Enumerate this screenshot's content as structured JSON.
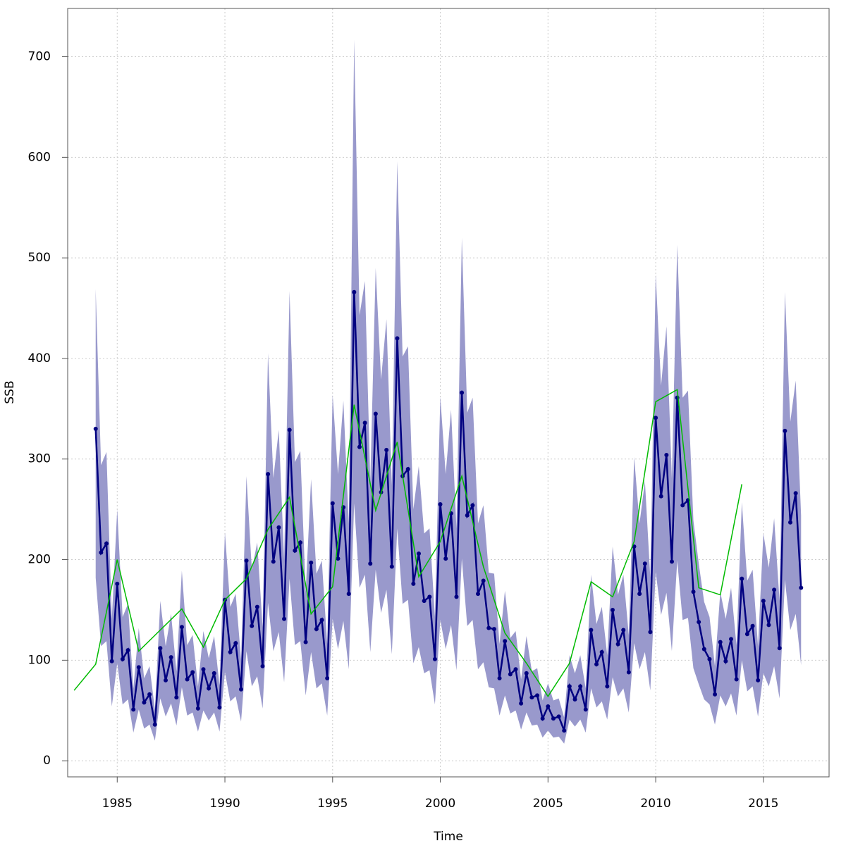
{
  "chart_data": {
    "type": "line",
    "xlabel": "Time",
    "ylabel": "SSB",
    "xlim": [
      1982.7,
      2018.05
    ],
    "ylim": [
      -16,
      748
    ],
    "xticks": [
      1985,
      1990,
      1995,
      2000,
      2005,
      2010,
      2015
    ],
    "yticks": [
      0,
      100,
      200,
      300,
      400,
      500,
      600,
      700
    ],
    "grid": true,
    "series": [
      {
        "color": "#000080",
        "band_color": "#9999cc",
        "markers": true,
        "x": [
          1984,
          1984.25,
          1984.5,
          1984.75,
          1985,
          1985.25,
          1985.5,
          1985.75,
          1986,
          1986.25,
          1986.5,
          1986.75,
          1987,
          1987.25,
          1987.5,
          1987.75,
          1988,
          1988.25,
          1988.5,
          1988.75,
          1989,
          1989.25,
          1989.5,
          1989.75,
          1990,
          1990.25,
          1990.5,
          1990.75,
          1991,
          1991.25,
          1991.5,
          1991.75,
          1992,
          1992.25,
          1992.5,
          1992.75,
          1993,
          1993.25,
          1993.5,
          1993.75,
          1994,
          1994.25,
          1994.5,
          1994.75,
          1995,
          1995.25,
          1995.5,
          1995.75,
          1996,
          1996.25,
          1996.5,
          1996.75,
          1997,
          1997.25,
          1997.5,
          1997.75,
          1998,
          1998.25,
          1998.5,
          1998.75,
          1999,
          1999.25,
          1999.5,
          1999.75,
          2000,
          2000.25,
          2000.5,
          2000.75,
          2001,
          2001.25,
          2001.5,
          2001.75,
          2002,
          2002.25,
          2002.5,
          2002.75,
          2003,
          2003.25,
          2003.5,
          2003.75,
          2004,
          2004.25,
          2004.5,
          2004.75,
          2005,
          2005.25,
          2005.5,
          2005.75,
          2006,
          2006.25,
          2006.5,
          2006.75,
          2007,
          2007.25,
          2007.5,
          2007.75,
          2008,
          2008.25,
          2008.5,
          2008.75,
          2009,
          2009.25,
          2009.5,
          2009.75,
          2010,
          2010.25,
          2010.5,
          2010.75,
          2011,
          2011.25,
          2011.5,
          2011.75,
          2012,
          2012.25,
          2012.5,
          2012.75,
          2013,
          2013.25,
          2013.5,
          2013.75,
          2014,
          2014.25,
          2014.5,
          2014.75,
          2015,
          2015.25,
          2015.5,
          2015.75,
          2016,
          2016.25,
          2016.5,
          2016.75
        ],
        "values": [
          330,
          207,
          216,
          99,
          176,
          101,
          110,
          51,
          93,
          58,
          66,
          36,
          112,
          80,
          103,
          63,
          133,
          81,
          88,
          52,
          91,
          72,
          87,
          53,
          160,
          108,
          117,
          71,
          199,
          134,
          153,
          94,
          285,
          198,
          232,
          141,
          329,
          209,
          217,
          118,
          197,
          131,
          140,
          82,
          256,
          201,
          252,
          166,
          466,
          312,
          336,
          196,
          345,
          267,
          309,
          193,
          420,
          283,
          290,
          176,
          206,
          159,
          163,
          101,
          255,
          201,
          246,
          163,
          366,
          244,
          254,
          166,
          179,
          132,
          131,
          82,
          119,
          86,
          91,
          57,
          87,
          63,
          65,
          42,
          54,
          42,
          44,
          30,
          74,
          61,
          74,
          51,
          130,
          96,
          108,
          74,
          150,
          116,
          130,
          88,
          213,
          166,
          196,
          128,
          341,
          263,
          304,
          198,
          361,
          254,
          259,
          168,
          138,
          111,
          101,
          66,
          118,
          99,
          121,
          81,
          181,
          126,
          134,
          80,
          159,
          135,
          170,
          112,
          328,
          237,
          266,
          172
        ],
        "upper": [
          469,
          294,
          307,
          141,
          250,
          143,
          156,
          72,
          132,
          82,
          94,
          51,
          159,
          114,
          146,
          89,
          189,
          115,
          125,
          74,
          129,
          102,
          124,
          75,
          227,
          153,
          166,
          101,
          283,
          190,
          217,
          133,
          405,
          281,
          329,
          200,
          467,
          297,
          308,
          168,
          280,
          186,
          199,
          116,
          364,
          285,
          358,
          236,
          717,
          443,
          477,
          278,
          490,
          379,
          439,
          274,
          596,
          402,
          412,
          250,
          293,
          226,
          231,
          143,
          362,
          285,
          349,
          231,
          520,
          346,
          361,
          236,
          254,
          187,
          186,
          116,
          169,
          122,
          129,
          81,
          124,
          89,
          92,
          60,
          77,
          60,
          62,
          43,
          105,
          87,
          105,
          72,
          185,
          136,
          153,
          105,
          213,
          165,
          185,
          125,
          302,
          236,
          278,
          182,
          484,
          373,
          432,
          281,
          513,
          361,
          368,
          239,
          196,
          158,
          143,
          94,
          168,
          141,
          172,
          115,
          257,
          179,
          190,
          114,
          226,
          192,
          241,
          159,
          466,
          337,
          378,
          244
        ],
        "lower": [
          182,
          114,
          119,
          54,
          97,
          56,
          61,
          28,
          51,
          32,
          36,
          20,
          62,
          44,
          57,
          35,
          73,
          45,
          48,
          29,
          50,
          40,
          48,
          29,
          88,
          59,
          64,
          39,
          109,
          74,
          84,
          52,
          157,
          109,
          128,
          78,
          181,
          115,
          119,
          65,
          108,
          72,
          77,
          45,
          141,
          111,
          139,
          91,
          256,
          172,
          185,
          108,
          190,
          147,
          170,
          106,
          231,
          156,
          160,
          97,
          113,
          87,
          90,
          56,
          140,
          111,
          135,
          90,
          201,
          134,
          140,
          91,
          98,
          73,
          72,
          45,
          65,
          47,
          50,
          31,
          48,
          35,
          36,
          23,
          30,
          23,
          24,
          17,
          41,
          34,
          41,
          28,
          72,
          53,
          59,
          41,
          83,
          64,
          72,
          48,
          117,
          91,
          108,
          70,
          188,
          145,
          167,
          109,
          199,
          140,
          142,
          92,
          76,
          61,
          56,
          36,
          65,
          54,
          67,
          45,
          100,
          69,
          74,
          44,
          87,
          74,
          94,
          62,
          180,
          130,
          146,
          95
        ]
      },
      {
        "color": "#00bb00",
        "markers": false,
        "x": [
          1983,
          1984,
          1985,
          1986,
          1987,
          1988,
          1989,
          1990,
          1991,
          1992,
          1993,
          1994,
          1995,
          1996,
          1997,
          1998,
          1999,
          2000,
          2001,
          2002,
          2003,
          2004,
          2005,
          2006,
          2007,
          2008,
          2009,
          2010,
          2011,
          2012,
          2013,
          2014
        ],
        "values": [
          70,
          96,
          200,
          109,
          130,
          151,
          113,
          160,
          181,
          230,
          262,
          146,
          173,
          354,
          249,
          317,
          183,
          218,
          283,
          193,
          127,
          97,
          64,
          97,
          178,
          163,
          218,
          357,
          369,
          172,
          165,
          275
        ]
      }
    ]
  }
}
